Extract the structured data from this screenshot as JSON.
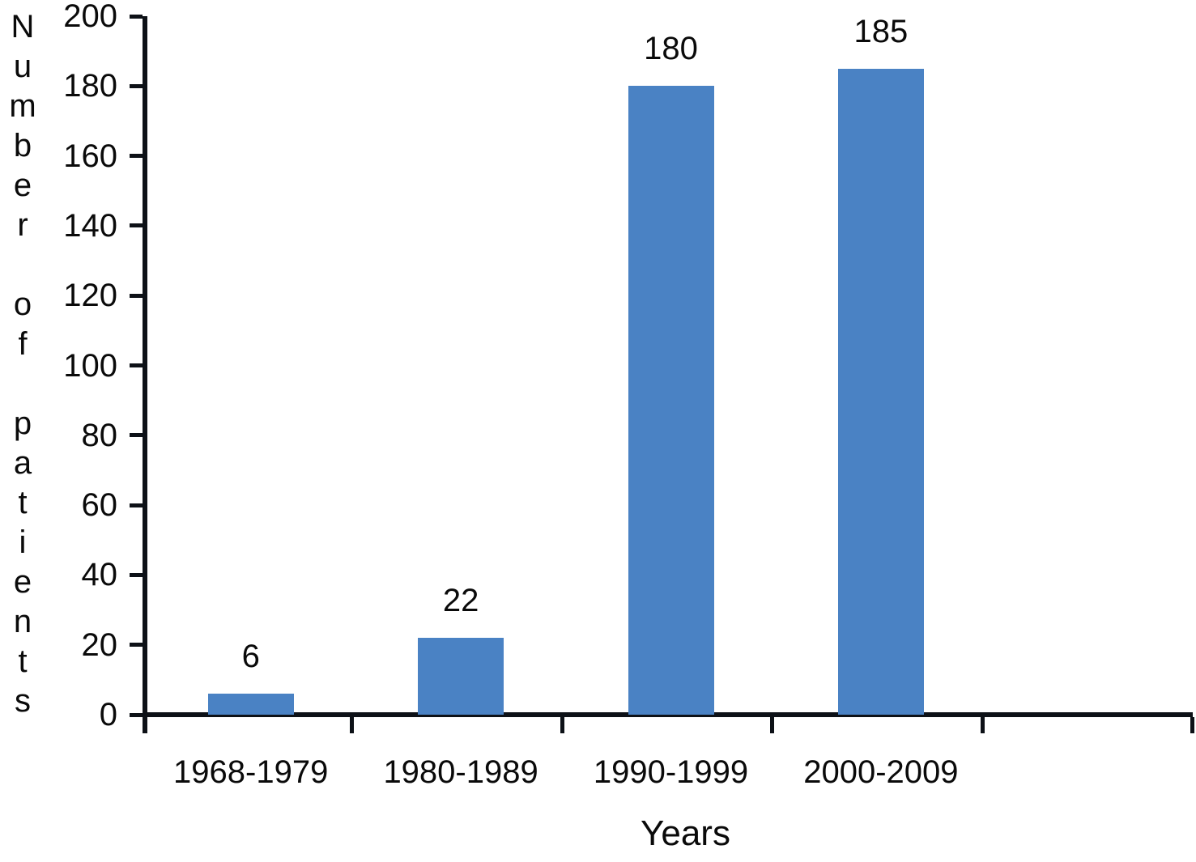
{
  "chart_data": {
    "type": "bar",
    "categories": [
      "1968-1979",
      "1980-1989",
      "1990-1999",
      "2000-2009"
    ],
    "values": [
      6,
      22,
      180,
      185
    ],
    "title": "",
    "xlabel": "Years",
    "ylabel": "Number of patients",
    "ylim": [
      0,
      200
    ],
    "yticks": [
      0,
      20,
      40,
      60,
      80,
      100,
      120,
      140,
      160,
      180,
      200
    ],
    "x_slots": 5,
    "grid": false,
    "legend": "none",
    "data_labels_shown": true,
    "colors": {
      "bar": "#4a82c4",
      "axis": "#0d1117",
      "text": "#0a0a0a",
      "background": "#ffffff"
    }
  }
}
